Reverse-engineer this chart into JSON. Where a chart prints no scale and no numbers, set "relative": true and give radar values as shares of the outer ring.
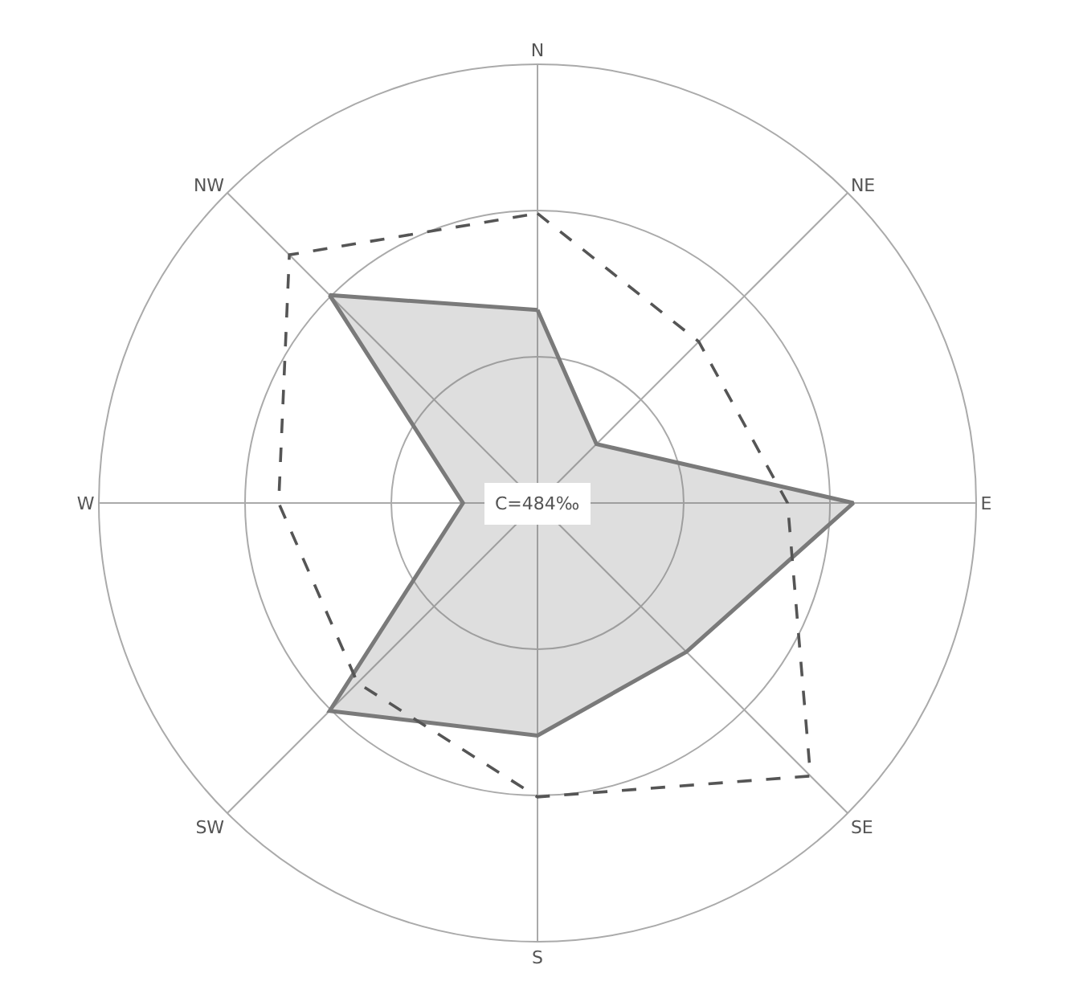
{
  "chart_data": {
    "type": "radar",
    "relative": true,
    "categories": [
      "N",
      "NE",
      "E",
      "SE",
      "S",
      "SW",
      "W",
      "NW"
    ],
    "series": [
      {
        "type": "area",
        "color": "#7a7a7a",
        "line_style": "solid",
        "values": [
          0.44,
          0.19,
          0.72,
          0.48,
          0.53,
          0.67,
          0.17,
          0.67
        ]
      },
      {
        "color": "#555555",
        "line_style": "dashed",
        "values": [
          0.66,
          0.52,
          0.57,
          0.88,
          0.67,
          0.58,
          0.59,
          0.8
        ]
      }
    ],
    "annotations": [
      "C=484‰"
    ],
    "grid": true
  }
}
